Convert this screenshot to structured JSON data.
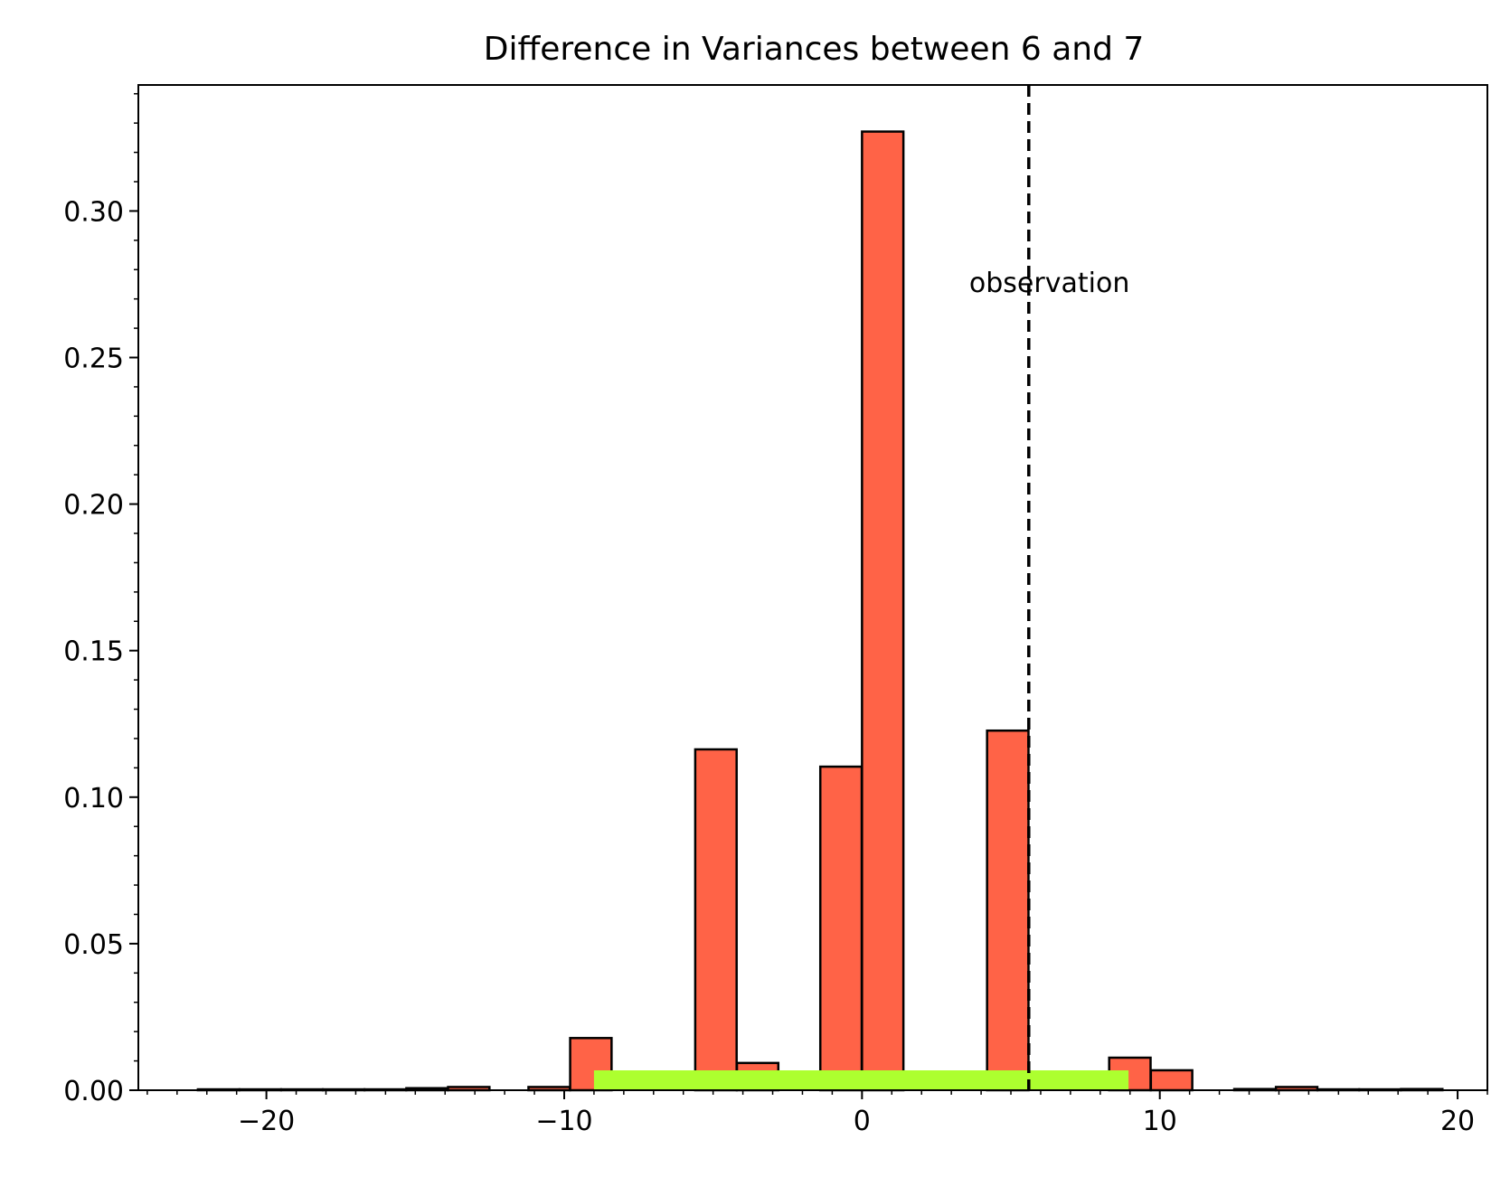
{
  "chart_data": {
    "type": "bar",
    "title": "Difference in Variances between 6 and 7",
    "xlabel": "",
    "ylabel": "",
    "xlim": [
      -24.3,
      21.0
    ],
    "ylim": [
      0,
      0.343
    ],
    "x_ticks": [
      -20,
      -10,
      0,
      10,
      20
    ],
    "x_tick_labels": [
      "−20",
      "−10",
      "0",
      "10",
      "20"
    ],
    "y_ticks": [
      0.0,
      0.05,
      0.1,
      0.15,
      0.2,
      0.25,
      0.3
    ],
    "y_tick_labels": [
      "0.00",
      "0.05",
      "0.10",
      "0.15",
      "0.20",
      "0.25",
      "0.30"
    ],
    "x_minor_step": 1,
    "y_minor_step": 0.01,
    "bin_width": 1.39,
    "bins": [
      {
        "left": -22.3,
        "height": 0.0003
      },
      {
        "left": -20.9,
        "height": 0.0003
      },
      {
        "left": -19.5,
        "height": 0.0003
      },
      {
        "left": -18.1,
        "height": 0.0003
      },
      {
        "left": -16.7,
        "height": 0.0003
      },
      {
        "left": -15.3,
        "height": 0.0007
      },
      {
        "left": -13.9,
        "height": 0.0011
      },
      {
        "left": -11.2,
        "height": 0.0011
      },
      {
        "left": -9.8,
        "height": 0.0178
      },
      {
        "left": -5.6,
        "height": 0.1163
      },
      {
        "left": -4.2,
        "height": 0.0093
      },
      {
        "left": -1.4,
        "height": 0.1104
      },
      {
        "left": 0.0,
        "height": 0.3271
      },
      {
        "left": 4.2,
        "height": 0.1227
      },
      {
        "left": 8.3,
        "height": 0.0111
      },
      {
        "left": 9.7,
        "height": 0.0068
      },
      {
        "left": 12.5,
        "height": 0.0004
      },
      {
        "left": 13.9,
        "height": 0.0011
      },
      {
        "left": 15.3,
        "height": 0.0003
      },
      {
        "left": 16.7,
        "height": 0.0003
      },
      {
        "left": 18.1,
        "height": 0.0004
      }
    ],
    "interval": {
      "start": -9.0,
      "end": 8.95
    },
    "observation": {
      "x": 5.6,
      "label": "observation",
      "label_x": 3.6,
      "label_y": 0.2755
    },
    "colors": {
      "bar": "#ff6347",
      "edge": "#000000",
      "interval": "#adff2f",
      "observation_line": "#000000"
    },
    "grid": false
  }
}
